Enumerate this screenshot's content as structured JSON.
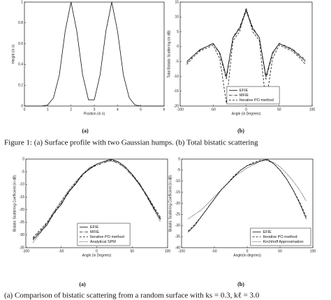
{
  "chart_data": [
    {
      "type": "line",
      "panel_label": "(a)",
      "xlabel": "Position (in λ)",
      "ylabel": "Height (in λ)",
      "xlim": [
        0,
        6
      ],
      "ylim": [
        0,
        1
      ],
      "xticks": [
        0,
        1,
        2,
        3,
        4,
        5,
        6
      ],
      "yticks": [
        0,
        0.2,
        0.4,
        0.6,
        0.8,
        1
      ],
      "x": [
        0,
        0.25,
        0.5,
        0.75,
        1,
        1.25,
        1.5,
        1.75,
        2,
        2.25,
        2.5,
        2.75,
        3,
        3.25,
        3.5,
        3.75,
        4,
        4.25,
        4.5,
        4.75,
        5,
        5.25,
        5.5,
        5.75,
        6
      ],
      "color": "#111111",
      "values": [
        0,
        0,
        0,
        0.001,
        0.01,
        0.08,
        0.3,
        0.72,
        1,
        0.72,
        0.3,
        0.06,
        0.06,
        0.3,
        0.72,
        1,
        0.72,
        0.3,
        0.08,
        0.01,
        0.001,
        0,
        0,
        0,
        0
      ]
    },
    {
      "type": "line",
      "panel_label": "(b)",
      "xlabel": "Angle (in Degrees)",
      "ylabel": "Total Bistatic Scattering (in dB)",
      "xlim": [
        -100,
        100
      ],
      "ylim": [
        -20,
        15
      ],
      "xticks": [
        -100,
        -50,
        0,
        50,
        100
      ],
      "yticks": [
        -20,
        -15,
        -10,
        -5,
        0,
        5,
        10,
        15
      ],
      "legend": "lower center",
      "x": [
        -90,
        -80,
        -70,
        -60,
        -50,
        -40,
        -30,
        -20,
        -10,
        0,
        10,
        20,
        30,
        40,
        50,
        60,
        70,
        80,
        90
      ],
      "series": [
        {
          "name": "EFIE",
          "color": "#111111",
          "style": "solid",
          "values": [
            -5,
            -3,
            -1,
            0,
            1,
            -2,
            -10,
            3,
            6,
            12,
            6,
            3,
            -10,
            -2,
            1,
            0,
            -1,
            -3,
            -5
          ]
        },
        {
          "name": "MFIE",
          "color": "#111111",
          "style": "dashdot",
          "values": [
            -5.5,
            -3,
            -1.2,
            0,
            1.2,
            -2.5,
            -11,
            3.2,
            6.5,
            12.5,
            6.4,
            3,
            -11,
            -2.4,
            1.1,
            0.2,
            -0.8,
            -2.6,
            -4.5
          ]
        },
        {
          "name": "Iterative PO method",
          "color": "#111111",
          "style": "dashed",
          "values": [
            -6,
            -3.5,
            -1.5,
            -0.5,
            0.5,
            -4,
            -19,
            2,
            5,
            13,
            5,
            2,
            -19,
            -4,
            0.5,
            -0.5,
            -1.5,
            -3.5,
            -6
          ]
        }
      ]
    },
    {
      "type": "line",
      "panel_label": "(a)",
      "xlabel": "Angle (in Degrees)",
      "ylabel": "Bistatic Scattering Coefficient (in dB)",
      "xlim": [
        -100,
        100
      ],
      "ylim": [
        -35,
        0
      ],
      "xticks": [
        -100,
        -50,
        0,
        50,
        100
      ],
      "yticks": [
        -35,
        -30,
        -25,
        -20,
        -15,
        -10,
        -5,
        0
      ],
      "legend": "lower center",
      "x": [
        -90,
        -80,
        -70,
        -60,
        -50,
        -40,
        -30,
        -20,
        -10,
        0,
        10,
        20,
        30,
        40,
        50,
        60,
        70,
        80,
        90
      ],
      "series": [
        {
          "name": "EFIE",
          "color": "#111111",
          "style": "solid",
          "values": [
            -32,
            -29,
            -26,
            -21,
            -18,
            -13,
            -10,
            -6,
            -4,
            -2,
            -1,
            0,
            -1,
            -3,
            -6,
            -10,
            -14,
            -19,
            -24
          ]
        },
        {
          "name": "MFIE",
          "color": "#111111",
          "style": "dashdot",
          "values": [
            -31.5,
            -28.5,
            -25.5,
            -21.5,
            -17.5,
            -13.5,
            -9.5,
            -6.5,
            -3.5,
            -2.5,
            -1.5,
            -0.5,
            -1.5,
            -3.5,
            -6.5,
            -9.5,
            -14.5,
            -19.5,
            -23.5
          ]
        },
        {
          "name": "Iterative PO method",
          "color": "#111111",
          "style": "dashed",
          "values": [
            -31,
            -28,
            -25,
            -21,
            -17,
            -13,
            -9.5,
            -6,
            -3.5,
            -2,
            -1,
            -0.3,
            -1,
            -3,
            -6,
            -9.5,
            -14,
            -18.5,
            -23
          ]
        },
        {
          "name": "Analytical SPM",
          "color": "#111111",
          "style": "dotted",
          "values": [
            -33,
            -29.5,
            -25,
            -20.5,
            -16.5,
            -12.5,
            -9,
            -6,
            -3.5,
            -2,
            -1,
            -0.8,
            -1.5,
            -3.5,
            -6.5,
            -10,
            -14.5,
            -19.5,
            -25
          ]
        }
      ]
    },
    {
      "type": "line",
      "panel_label": "(b)",
      "xlabel": "Angle(in degrees)",
      "ylabel": "Bistatic Scattering Coefficient (in dB)",
      "xlim": [
        -100,
        100
      ],
      "ylim": [
        -40,
        0
      ],
      "xticks": [
        -100,
        -50,
        0,
        50,
        100
      ],
      "yticks": [
        -40,
        -35,
        -30,
        -25,
        -20,
        -15,
        -10,
        -5,
        0
      ],
      "legend": "lower right",
      "x": [
        -90,
        -80,
        -70,
        -60,
        -50,
        -40,
        -30,
        -20,
        -10,
        0,
        10,
        20,
        30,
        40,
        50,
        60,
        70,
        80,
        90
      ],
      "series": [
        {
          "name": "EFIE",
          "color": "#111111",
          "style": "solid",
          "values": [
            -33,
            -30,
            -26,
            -22,
            -18,
            -14,
            -11,
            -8,
            -5,
            -3,
            -2,
            -1,
            0,
            -2,
            -5,
            -9,
            -14,
            -20,
            -27
          ]
        },
        {
          "name": "Iterative PO method",
          "color": "#111111",
          "style": "dashed",
          "values": [
            -32.5,
            -29.5,
            -26,
            -22,
            -18,
            -14,
            -11,
            -7.5,
            -5,
            -3,
            -1.5,
            -0.5,
            -0.5,
            -2,
            -5,
            -9,
            -14,
            -19.5,
            -26
          ]
        },
        {
          "name": "Kirchhoff Approximation",
          "color": "#111111",
          "style": "dotted",
          "values": [
            -27,
            -25,
            -23,
            -20,
            -17,
            -14,
            -11,
            -8,
            -6,
            -4,
            -2.5,
            -1,
            -0.5,
            -1.5,
            -3.5,
            -6.5,
            -10,
            -14,
            -19
          ]
        }
      ]
    }
  ],
  "captions": [
    "Figure 1: (a) Surface profile with two Gaussian humps. (b) Total bistatic scattering",
    "(a) Comparison of bistatic scattering from a random surface with ks = 0.3, kℓ = 3.0"
  ]
}
